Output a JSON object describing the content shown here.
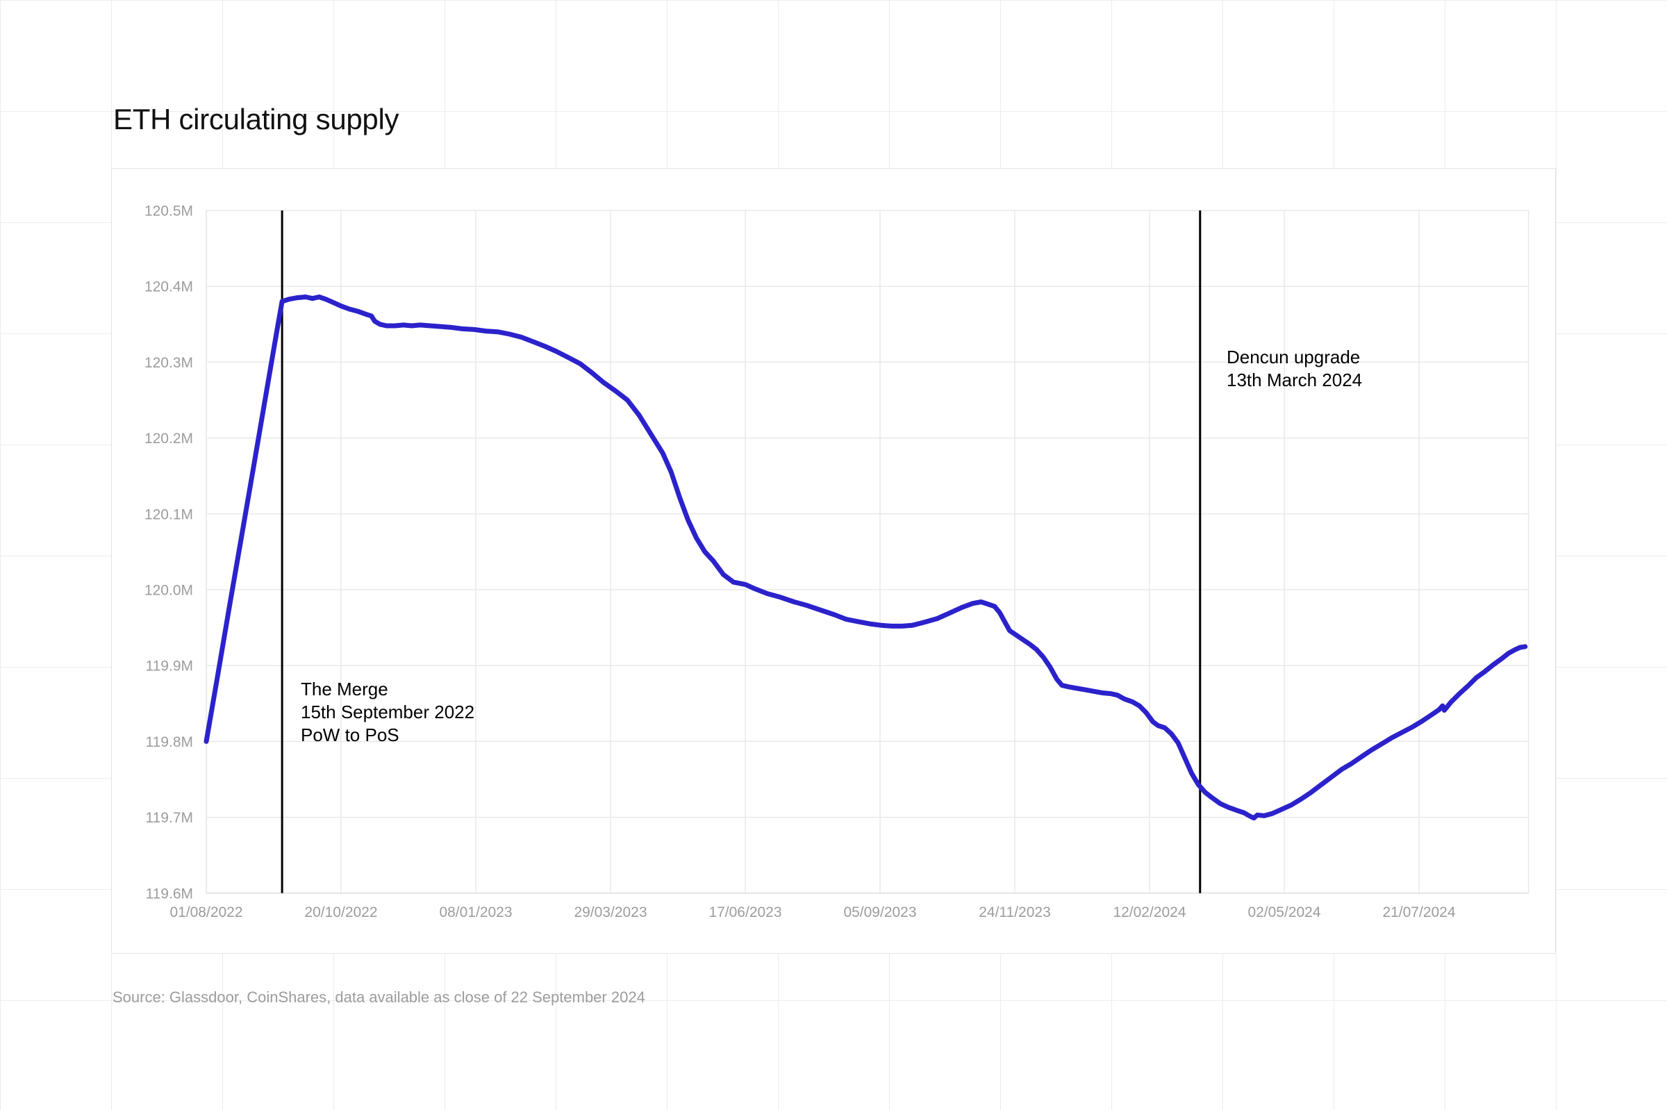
{
  "page": {
    "title": "ETH circulating supply",
    "source_note": "Source: Glassdoor, CoinShares, data available as close of 22 September 2024"
  },
  "annotations": {
    "merge": {
      "date": "2022-09-15",
      "line1": "The Merge",
      "line2": "15th September 2022",
      "line3": "PoW to PoS"
    },
    "dencun": {
      "date": "2024-03-13",
      "line1": "Dencun upgrade",
      "line2": "13th March 2024"
    }
  },
  "chart_data": {
    "type": "line",
    "title": "ETH circulating supply",
    "xlabel": "",
    "ylabel": "",
    "unit": "million ETH",
    "ylim": [
      119.6,
      120.5
    ],
    "xlim": [
      "2022-08-01",
      "2024-09-24"
    ],
    "grid": true,
    "legend": "none",
    "line_color": "#2b22cb",
    "marker_line_color": "#000000",
    "grid_color": "#e8e8e8",
    "axis_text_color": "#9c9c9c",
    "y_ticks": [
      {
        "value": 120.5,
        "label": "120.5M"
      },
      {
        "value": 120.4,
        "label": "120.4M"
      },
      {
        "value": 120.3,
        "label": "120.3M"
      },
      {
        "value": 120.2,
        "label": "120.2M"
      },
      {
        "value": 120.1,
        "label": "120.1M"
      },
      {
        "value": 120.0,
        "label": "120.0M"
      },
      {
        "value": 119.9,
        "label": "119.9M"
      },
      {
        "value": 119.8,
        "label": "119.8M"
      },
      {
        "value": 119.7,
        "label": "119.7M"
      },
      {
        "value": 119.6,
        "label": "119.6M"
      }
    ],
    "x_ticks": [
      {
        "date": "2022-08-01",
        "label": "01/08/2022"
      },
      {
        "date": "2022-10-20",
        "label": "20/10/2022"
      },
      {
        "date": "2023-01-08",
        "label": "08/01/2023"
      },
      {
        "date": "2023-03-29",
        "label": "29/03/2023"
      },
      {
        "date": "2023-06-17",
        "label": "17/06/2023"
      },
      {
        "date": "2023-09-05",
        "label": "05/09/2023"
      },
      {
        "date": "2023-11-24",
        "label": "24/11/2023"
      },
      {
        "date": "2024-02-12",
        "label": "12/02/2024"
      },
      {
        "date": "2024-05-02",
        "label": "02/05/2024"
      },
      {
        "date": "2024-07-21",
        "label": "21/07/2024"
      }
    ],
    "series": [
      {
        "name": "ETH circulating supply",
        "points": [
          [
            "2022-08-01",
            119.8
          ],
          [
            "2022-08-08",
            119.89
          ],
          [
            "2022-08-15",
            119.981
          ],
          [
            "2022-08-22",
            120.071
          ],
          [
            "2022-08-29",
            120.161
          ],
          [
            "2022-09-05",
            120.252
          ],
          [
            "2022-09-12",
            120.342
          ],
          [
            "2022-09-15",
            120.38
          ],
          [
            "2022-09-19",
            120.383
          ],
          [
            "2022-09-24",
            120.385
          ],
          [
            "2022-09-29",
            120.386
          ],
          [
            "2022-10-03",
            120.384
          ],
          [
            "2022-10-07",
            120.386
          ],
          [
            "2022-10-11",
            120.383
          ],
          [
            "2022-10-15",
            120.379
          ],
          [
            "2022-10-20",
            120.374
          ],
          [
            "2022-10-25",
            120.37
          ],
          [
            "2022-10-30",
            120.367
          ],
          [
            "2022-11-04",
            120.363
          ],
          [
            "2022-11-07",
            120.361
          ],
          [
            "2022-11-09",
            120.354
          ],
          [
            "2022-11-12",
            120.35
          ],
          [
            "2022-11-16",
            120.348
          ],
          [
            "2022-11-21",
            120.348
          ],
          [
            "2022-11-26",
            120.349
          ],
          [
            "2022-12-01",
            120.348
          ],
          [
            "2022-12-06",
            120.349
          ],
          [
            "2022-12-12",
            120.348
          ],
          [
            "2022-12-18",
            120.347
          ],
          [
            "2022-12-24",
            120.346
          ],
          [
            "2022-12-31",
            120.344
          ],
          [
            "2023-01-07",
            120.343
          ],
          [
            "2023-01-14",
            120.341
          ],
          [
            "2023-01-21",
            120.34
          ],
          [
            "2023-01-28",
            120.337
          ],
          [
            "2023-02-04",
            120.333
          ],
          [
            "2023-02-11",
            120.327
          ],
          [
            "2023-02-18",
            120.321
          ],
          [
            "2023-02-25",
            120.314
          ],
          [
            "2023-03-04",
            120.306
          ],
          [
            "2023-03-11",
            120.298
          ],
          [
            "2023-03-18",
            120.286
          ],
          [
            "2023-03-25",
            120.273
          ],
          [
            "2023-04-01",
            120.262
          ],
          [
            "2023-04-08",
            120.25
          ],
          [
            "2023-04-15",
            120.23
          ],
          [
            "2023-04-22",
            120.205
          ],
          [
            "2023-04-29",
            120.18
          ],
          [
            "2023-05-04",
            120.155
          ],
          [
            "2023-05-09",
            120.122
          ],
          [
            "2023-05-14",
            120.092
          ],
          [
            "2023-05-19",
            120.068
          ],
          [
            "2023-05-24",
            120.05
          ],
          [
            "2023-05-29",
            120.038
          ],
          [
            "2023-06-04",
            120.02
          ],
          [
            "2023-06-10",
            120.01
          ],
          [
            "2023-06-17",
            120.007
          ],
          [
            "2023-06-23",
            120.001
          ],
          [
            "2023-06-30",
            119.995
          ],
          [
            "2023-07-08",
            119.99
          ],
          [
            "2023-07-16",
            119.984
          ],
          [
            "2023-07-24",
            119.979
          ],
          [
            "2023-08-01",
            119.973
          ],
          [
            "2023-08-09",
            119.967
          ],
          [
            "2023-08-16",
            119.961
          ],
          [
            "2023-08-23",
            119.958
          ],
          [
            "2023-08-30",
            119.955
          ],
          [
            "2023-09-06",
            119.953
          ],
          [
            "2023-09-12",
            119.952
          ],
          [
            "2023-09-18",
            119.952
          ],
          [
            "2023-09-24",
            119.953
          ],
          [
            "2023-10-01",
            119.957
          ],
          [
            "2023-10-09",
            119.962
          ],
          [
            "2023-10-17",
            119.97
          ],
          [
            "2023-10-24",
            119.977
          ],
          [
            "2023-10-30",
            119.982
          ],
          [
            "2023-11-04",
            119.984
          ],
          [
            "2023-11-08",
            119.981
          ],
          [
            "2023-11-12",
            119.978
          ],
          [
            "2023-11-15",
            119.97
          ],
          [
            "2023-11-18",
            119.958
          ],
          [
            "2023-11-21",
            119.946
          ],
          [
            "2023-11-25",
            119.94
          ],
          [
            "2023-11-29",
            119.934
          ],
          [
            "2023-12-03",
            119.928
          ],
          [
            "2023-12-07",
            119.921
          ],
          [
            "2023-12-11",
            119.911
          ],
          [
            "2023-12-15",
            119.898
          ],
          [
            "2023-12-19",
            119.882
          ],
          [
            "2023-12-22",
            119.874
          ],
          [
            "2023-12-26",
            119.872
          ],
          [
            "2023-12-31",
            119.87
          ],
          [
            "2024-01-05",
            119.868
          ],
          [
            "2024-01-10",
            119.866
          ],
          [
            "2024-01-15",
            119.864
          ],
          [
            "2024-01-20",
            119.863
          ],
          [
            "2024-01-24",
            119.861
          ],
          [
            "2024-01-28",
            119.856
          ],
          [
            "2024-02-02",
            119.852
          ],
          [
            "2024-02-06",
            119.847
          ],
          [
            "2024-02-10",
            119.838
          ],
          [
            "2024-02-14",
            119.826
          ],
          [
            "2024-02-17",
            119.821
          ],
          [
            "2024-02-21",
            119.818
          ],
          [
            "2024-02-25",
            119.81
          ],
          [
            "2024-02-29",
            119.798
          ],
          [
            "2024-03-04",
            119.778
          ],
          [
            "2024-03-08",
            119.758
          ],
          [
            "2024-03-12",
            119.743
          ],
          [
            "2024-03-16",
            119.733
          ],
          [
            "2024-03-20",
            119.726
          ],
          [
            "2024-03-25",
            119.718
          ],
          [
            "2024-03-30",
            119.713
          ],
          [
            "2024-04-04",
            119.709
          ],
          [
            "2024-04-08",
            119.706
          ],
          [
            "2024-04-12",
            119.701
          ],
          [
            "2024-04-14",
            119.699
          ],
          [
            "2024-04-16",
            119.703
          ],
          [
            "2024-04-20",
            119.702
          ],
          [
            "2024-04-25",
            119.705
          ],
          [
            "2024-04-30",
            119.71
          ],
          [
            "2024-05-06",
            119.716
          ],
          [
            "2024-05-12",
            119.724
          ],
          [
            "2024-05-18",
            119.733
          ],
          [
            "2024-05-24",
            119.743
          ],
          [
            "2024-05-30",
            119.753
          ],
          [
            "2024-06-05",
            119.763
          ],
          [
            "2024-06-11",
            119.771
          ],
          [
            "2024-06-17",
            119.78
          ],
          [
            "2024-06-23",
            119.789
          ],
          [
            "2024-06-29",
            119.797
          ],
          [
            "2024-07-05",
            119.805
          ],
          [
            "2024-07-11",
            119.812
          ],
          [
            "2024-07-17",
            119.819
          ],
          [
            "2024-07-23",
            119.827
          ],
          [
            "2024-07-29",
            119.836
          ],
          [
            "2024-08-02",
            119.842
          ],
          [
            "2024-08-04",
            119.847
          ],
          [
            "2024-08-05",
            119.841
          ],
          [
            "2024-08-09",
            119.852
          ],
          [
            "2024-08-14",
            119.863
          ],
          [
            "2024-08-19",
            119.873
          ],
          [
            "2024-08-24",
            119.884
          ],
          [
            "2024-08-29",
            119.892
          ],
          [
            "2024-09-03",
            119.901
          ],
          [
            "2024-09-08",
            119.909
          ],
          [
            "2024-09-12",
            119.916
          ],
          [
            "2024-09-16",
            119.921
          ],
          [
            "2024-09-19",
            119.924
          ],
          [
            "2024-09-22",
            119.925
          ]
        ]
      }
    ]
  }
}
